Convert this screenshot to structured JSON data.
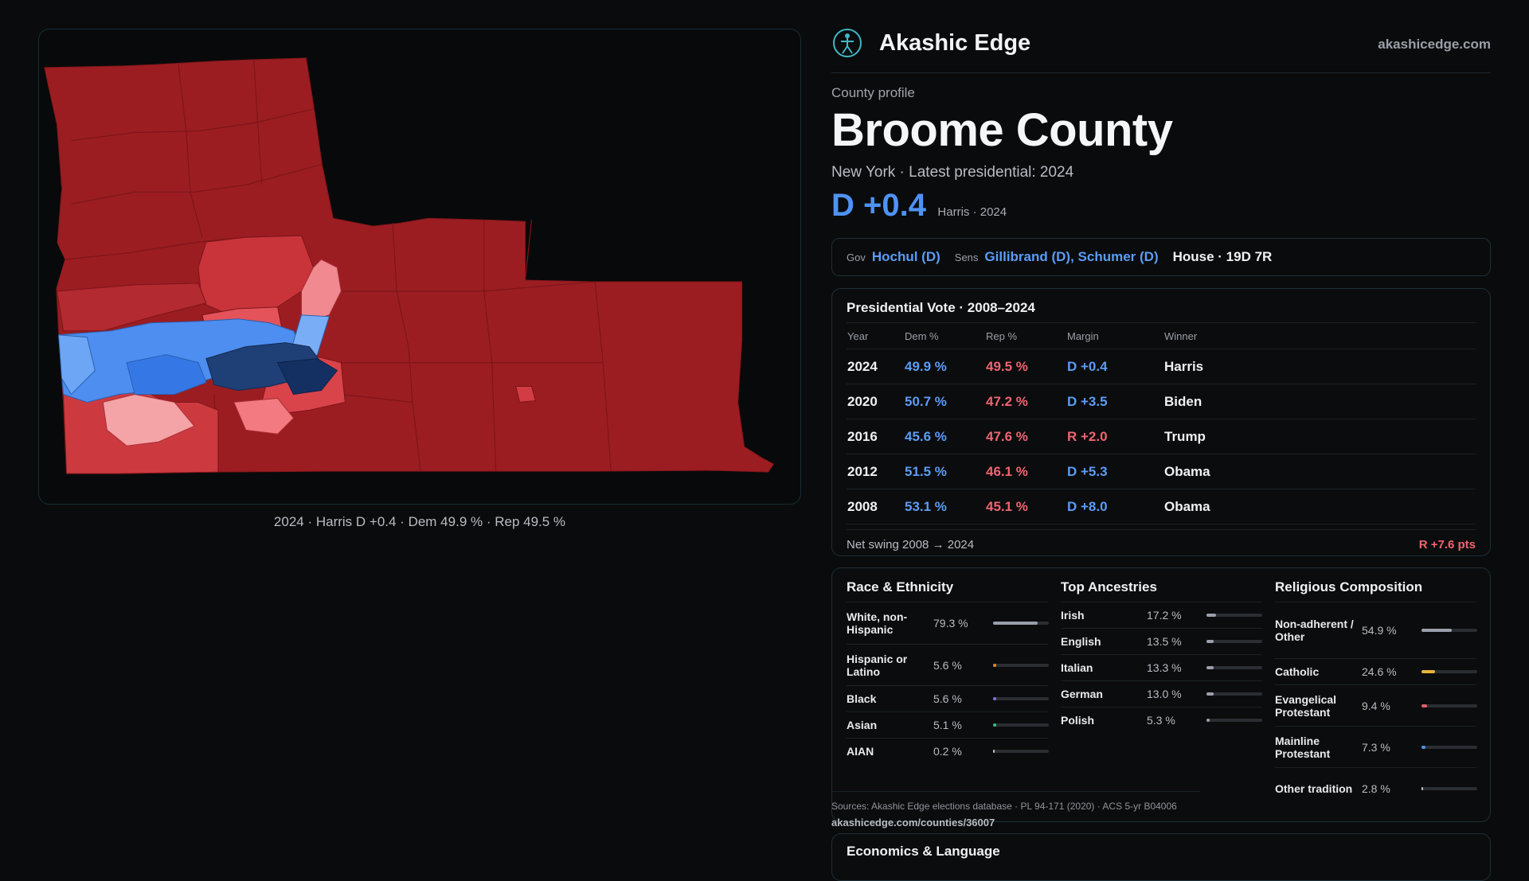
{
  "map": {
    "caption": "2024 · Harris D +0.4 · Dem 49.9 % · Rep 49.5 %"
  },
  "brand": {
    "name": "Akashic Edge",
    "url": "akashicedge.com",
    "logo_icon": "globe-person-icon"
  },
  "profile": {
    "eyebrow": "County profile",
    "title": "Broome County",
    "subtitle": "New York · Latest presidential: 2024",
    "margin": "D +0.4",
    "margin_sub": "Harris · 2024"
  },
  "officials": {
    "gov_label": "Gov",
    "gov": "Hochul (D)",
    "sens_label": "Sens",
    "sens": "Gillibrand (D), Schumer (D)",
    "house": "House · 19D 7R"
  },
  "presidential": {
    "title": "Presidential Vote · 2008–2024",
    "headers": [
      "Year",
      "Dem %",
      "Rep %",
      "Margin",
      "Winner"
    ],
    "rows": [
      {
        "year": "2024",
        "dem": "49.9 %",
        "rep": "49.5 %",
        "margin": "D +0.4",
        "party": "D",
        "winner": "Harris"
      },
      {
        "year": "2020",
        "dem": "50.7 %",
        "rep": "47.2 %",
        "margin": "D +3.5",
        "party": "D",
        "winner": "Biden"
      },
      {
        "year": "2016",
        "dem": "45.6 %",
        "rep": "47.6 %",
        "margin": "R +2.0",
        "party": "R",
        "winner": "Trump"
      },
      {
        "year": "2012",
        "dem": "51.5 %",
        "rep": "46.1 %",
        "margin": "D +5.3",
        "party": "D",
        "winner": "Obama"
      },
      {
        "year": "2008",
        "dem": "53.1 %",
        "rep": "45.1 %",
        "margin": "D +8.0",
        "party": "D",
        "winner": "Obama"
      }
    ],
    "swing_label": "Net swing 2008 → 2024",
    "swing_value": "R +7.6 pts"
  },
  "race": {
    "title": "Race & Ethnicity",
    "items": [
      {
        "name": "White, non-Hispanic",
        "pct": "79.3 %",
        "value": 79.3,
        "color": "#9aa0ab"
      },
      {
        "name": "Hispanic or Latino",
        "pct": "5.6 %",
        "value": 5.6,
        "color": "#e08a2e"
      },
      {
        "name": "Black",
        "pct": "5.6 %",
        "value": 5.6,
        "color": "#8a6ee0"
      },
      {
        "name": "Asian",
        "pct": "5.1 %",
        "value": 5.1,
        "color": "#2fbf8f"
      },
      {
        "name": "AIAN",
        "pct": "0.2 %",
        "value": 0.2,
        "color": "#c0c4ca"
      }
    ]
  },
  "ancestry": {
    "title": "Top Ancestries",
    "items": [
      {
        "name": "Irish",
        "pct": "17.2 %",
        "value": 17.2,
        "color": "#9aa0ab"
      },
      {
        "name": "English",
        "pct": "13.5 %",
        "value": 13.5,
        "color": "#9aa0ab"
      },
      {
        "name": "Italian",
        "pct": "13.3 %",
        "value": 13.3,
        "color": "#9aa0ab"
      },
      {
        "name": "German",
        "pct": "13.0 %",
        "value": 13.0,
        "color": "#9aa0ab"
      },
      {
        "name": "Polish",
        "pct": "5.3 %",
        "value": 5.3,
        "color": "#9aa0ab"
      }
    ]
  },
  "religion": {
    "title": "Religious Composition",
    "items": [
      {
        "name": "Non-adherent / Other",
        "pct": "54.9 %",
        "value": 54.9,
        "color": "#9aa0ab"
      },
      {
        "name": "Catholic",
        "pct": "24.6 %",
        "value": 24.6,
        "color": "#e8b33a"
      },
      {
        "name": "Evangelical Protestant",
        "pct": "9.4 %",
        "value": 9.4,
        "color": "#e85a6a"
      },
      {
        "name": "Mainline Protestant",
        "pct": "7.3 %",
        "value": 7.3,
        "color": "#4e92f5"
      },
      {
        "name": "Other tradition",
        "pct": "2.8 %",
        "value": 2.8,
        "color": "#c0c4ca"
      }
    ]
  },
  "sources": {
    "text": "Sources: Akashic Edge elections database · PL 94-171 (2020) · ACS 5-yr B04006",
    "url": "akashicedge.com/counties/36007"
  },
  "economics": {
    "title": "Economics & Language"
  }
}
